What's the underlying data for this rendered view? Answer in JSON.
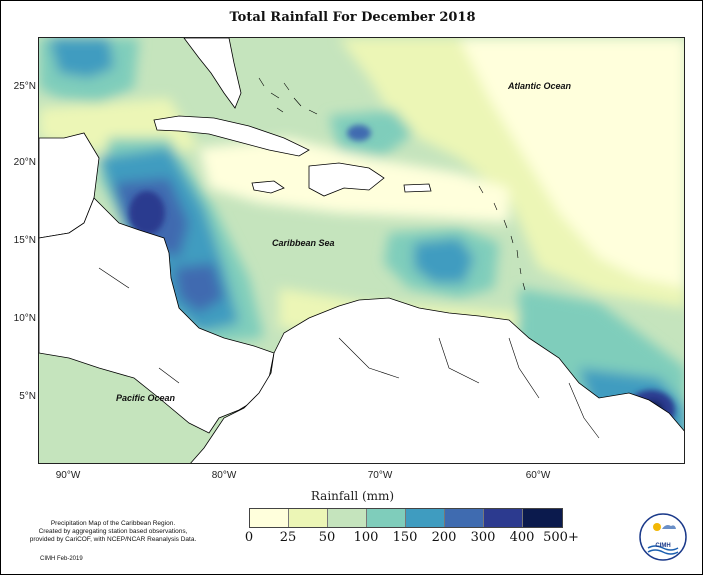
{
  "title": "Total Rainfall For December 2018",
  "map": {
    "lat_labels": [
      "25°N",
      "20°N",
      "15°N",
      "10°N",
      "5°N"
    ],
    "lon_labels": [
      "90°W",
      "80°W",
      "70°W",
      "60°W"
    ],
    "water_labels": {
      "atlantic": "Atlantic Ocean",
      "caribbean": "Caribbean Sea",
      "pacific": "Pacific Ocean"
    },
    "extent": {
      "lon": [
        -92,
        -51
      ],
      "lat": [
        1.5,
        28.5
      ]
    }
  },
  "legend": {
    "xlabel": "Rainfall (mm)",
    "tick_labels": [
      "0",
      "25",
      "50",
      "100",
      "150",
      "200",
      "300",
      "400",
      "500+"
    ],
    "colors": [
      "#ffffdc",
      "#ecf6b6",
      "#c5e4bd",
      "#7fcdbb",
      "#3f9cc0",
      "#3f6bb0",
      "#2c3a8f",
      "#0b1a4d"
    ]
  },
  "note": {
    "lines": [
      "Precipitation Map of the Caribbean Region.",
      "Created by aggregating station based observations,",
      "provided by CariCOF, with NCEP/NCAR Reanalysis Data."
    ],
    "credit": "CIMH Feb-2019",
    "logo_text": "CIMH"
  }
}
